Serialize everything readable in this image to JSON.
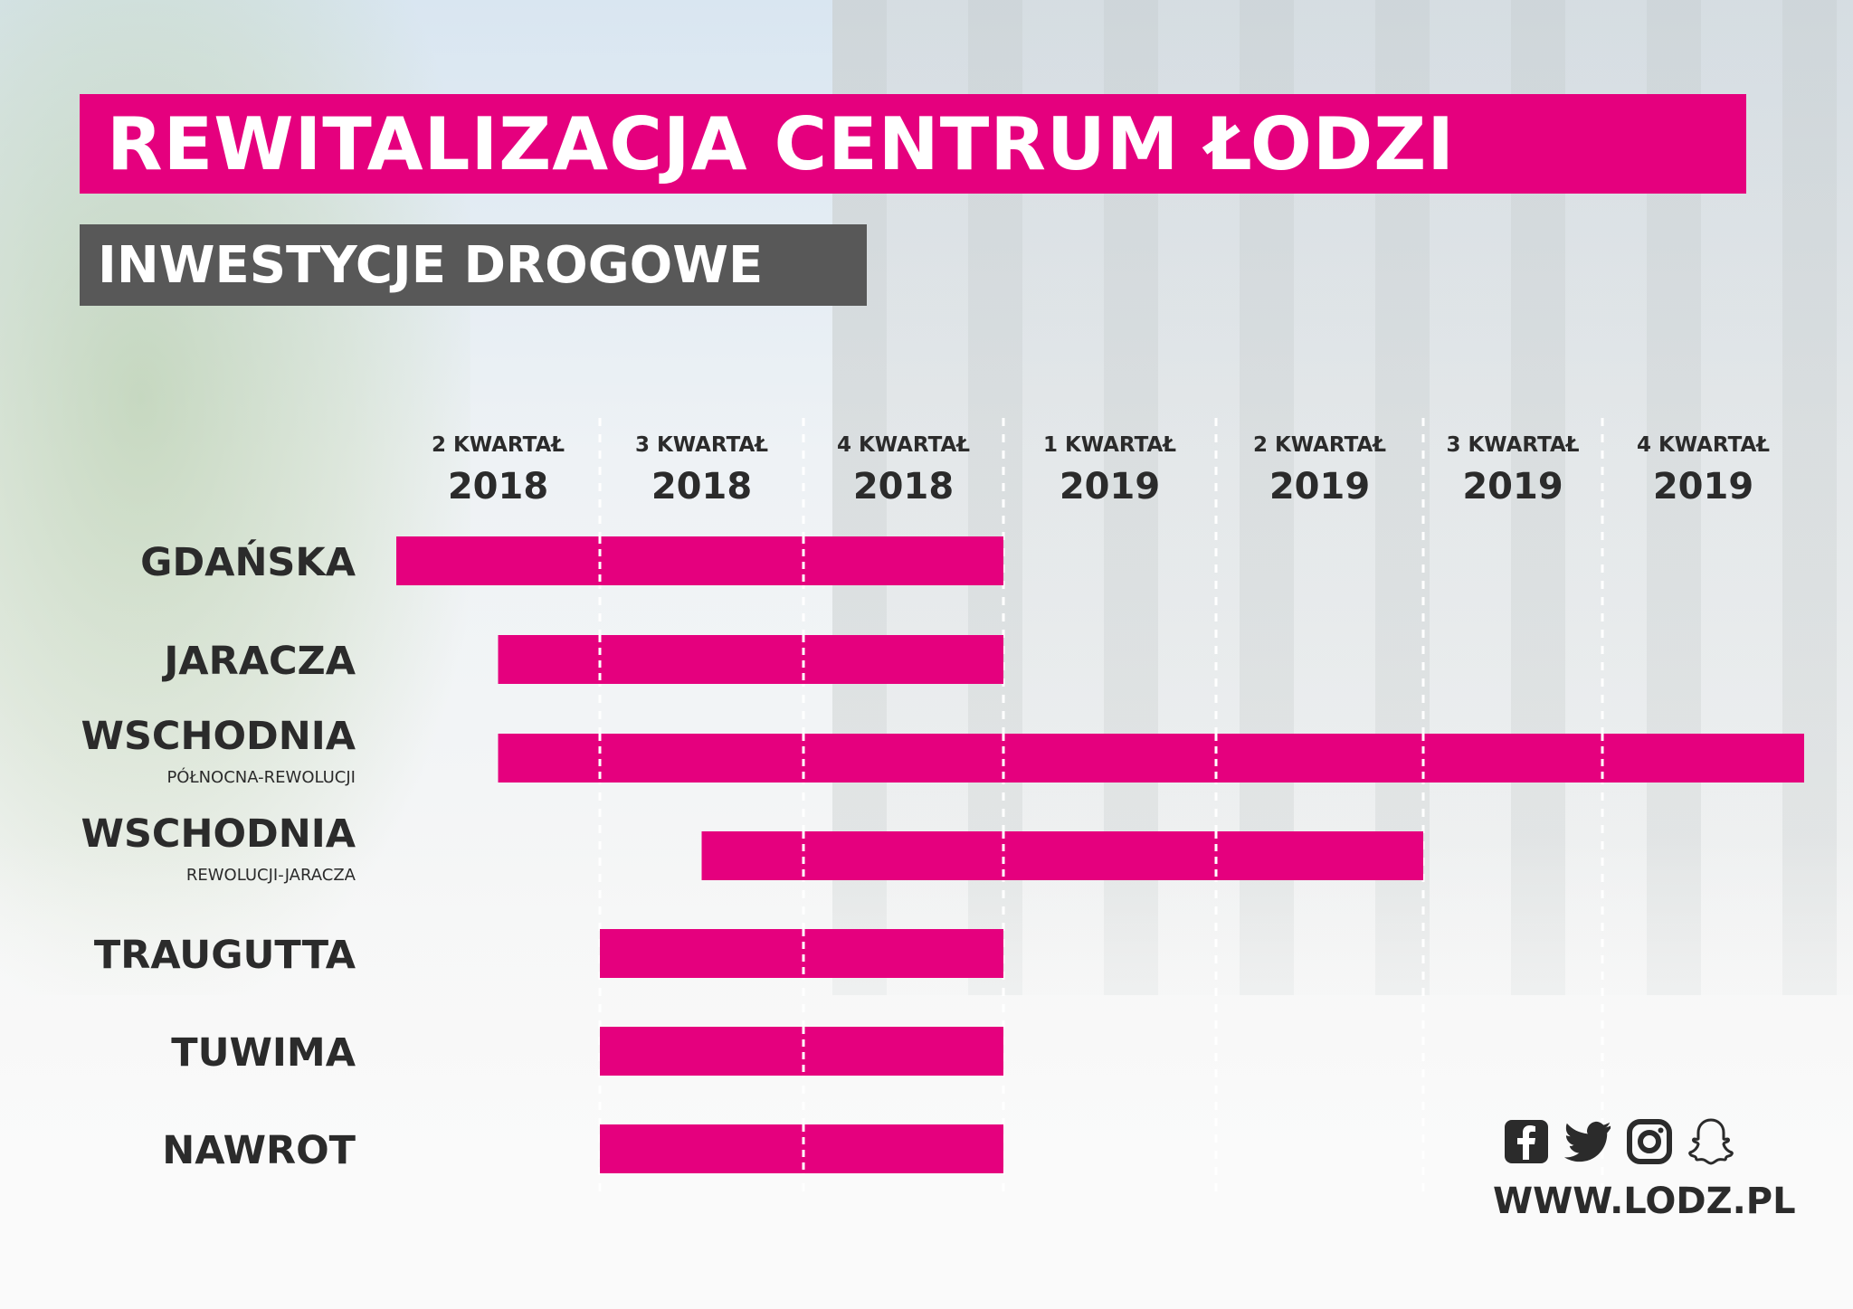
{
  "header": {
    "title": "REWITALIZACJA CENTRUM ŁODZI",
    "subtitle": "INWESTYCJE DROGOWE"
  },
  "colors": {
    "accent": "#e5007e",
    "subtitle_bg": "#585858",
    "text_dark": "#2b2b2b",
    "divider": "#ffffff"
  },
  "chart_data": {
    "type": "gantt",
    "grid": "dashed vertical separators at quarter boundaries",
    "quarters": [
      {
        "label": "2 KWARTAŁ",
        "year": "2018"
      },
      {
        "label": "3 KWARTAŁ",
        "year": "2018"
      },
      {
        "label": "4 KWARTAŁ",
        "year": "2018"
      },
      {
        "label": "1 KWARTAŁ",
        "year": "2019"
      },
      {
        "label": "2 KWARTAŁ",
        "year": "2019"
      },
      {
        "label": "3 KWARTAŁ",
        "year": "2019"
      },
      {
        "label": "4 KWARTAŁ",
        "year": "2019"
      }
    ],
    "tasks": [
      {
        "name": "GDAŃSKA",
        "sub": "",
        "start": 0,
        "end": 3
      },
      {
        "name": "JARACZA",
        "sub": "",
        "start": 0.5,
        "end": 3
      },
      {
        "name": "WSCHODNIA",
        "sub": "PÓŁNOCNA-REWOLUCJI",
        "start": 0.5,
        "end": 7
      },
      {
        "name": "WSCHODNIA",
        "sub": "REWOLUCJI-JARACZA",
        "start": 1.5,
        "end": 5
      },
      {
        "name": "TRAUGUTTA",
        "sub": "",
        "start": 1,
        "end": 3
      },
      {
        "name": "TUWIMA",
        "sub": "",
        "start": 1,
        "end": 3
      },
      {
        "name": "NAWROT",
        "sub": "",
        "start": 1,
        "end": 3
      }
    ]
  },
  "social": {
    "icons": [
      "facebook-icon",
      "twitter-icon",
      "instagram-icon",
      "snapchat-icon"
    ],
    "website": "WWW.LODZ.PL"
  }
}
